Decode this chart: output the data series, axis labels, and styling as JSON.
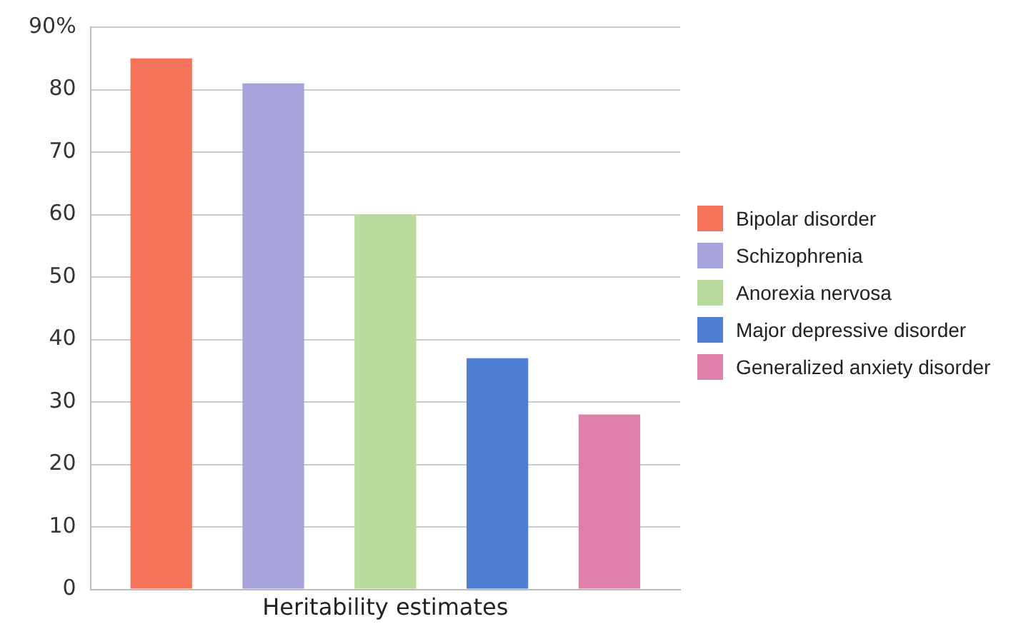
{
  "chart_data": {
    "type": "bar",
    "xlabel": "Heritability estimates",
    "categories": [
      null
    ],
    "series": [
      {
        "name": "Bipolar disorder",
        "color": "#f4735a",
        "values": [
          85
        ]
      },
      {
        "name": "Schizophrenia",
        "color": "#a7a3dc",
        "values": [
          81
        ]
      },
      {
        "name": "Anorexia nervosa",
        "color": "#b9dc9c",
        "values": [
          60
        ]
      },
      {
        "name": "Major depressive disorder",
        "color": "#4f7fd4",
        "values": [
          37
        ]
      },
      {
        "name": "Generalized anxiety disorder",
        "color": "#dd7fa8",
        "values": [
          28
        ]
      }
    ],
    "ylim": [
      0,
      90
    ],
    "yticks": [
      0,
      10,
      20,
      30,
      40,
      50,
      60,
      70,
      80,
      {
        "value": 90,
        "label": "90%"
      }
    ],
    "grid": "y",
    "legend": "right",
    "tick_labels": "y"
  }
}
